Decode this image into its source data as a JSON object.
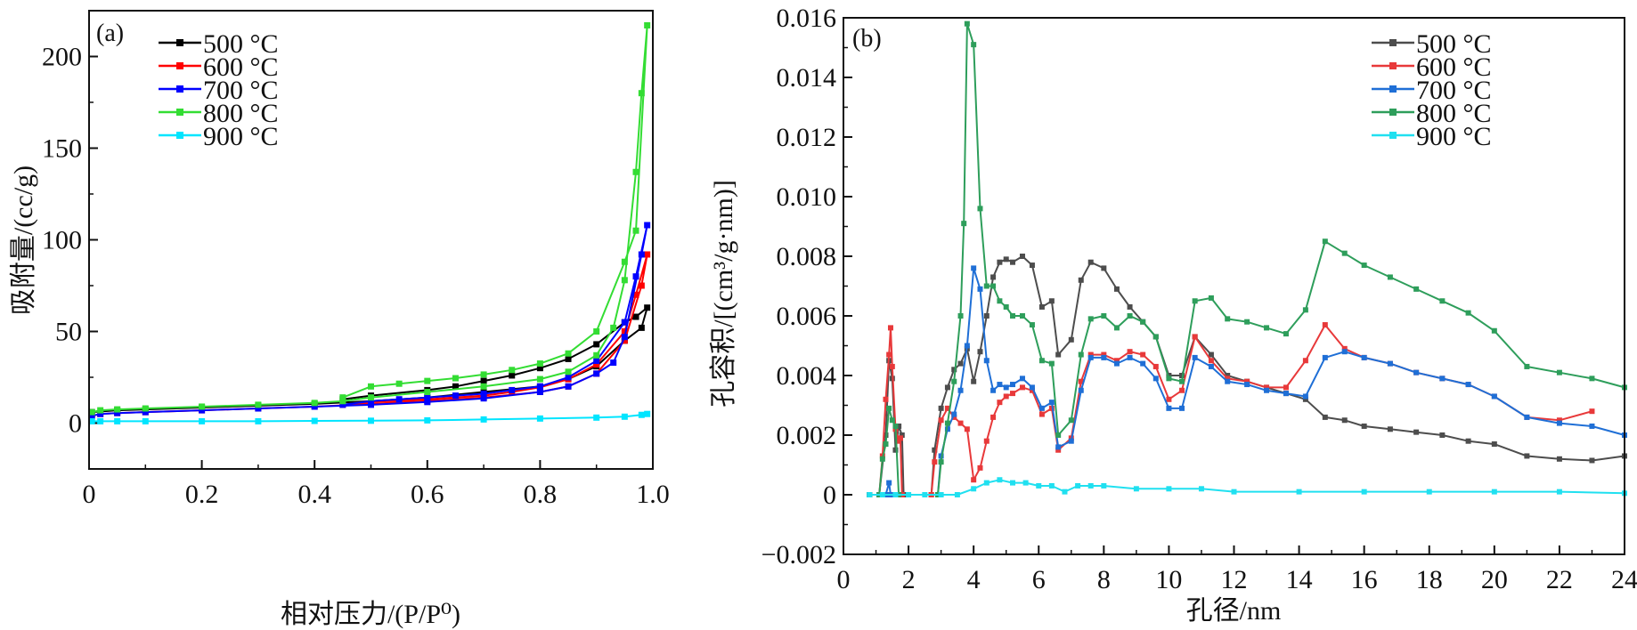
{
  "chart_data": [
    {
      "type": "line",
      "panel_label": "(a)",
      "xlabel": "相对压力/(P/P⁰)",
      "ylabel": "吸附量/(cc/g)",
      "xlim": [
        0,
        1.0
      ],
      "ylim": [
        -25,
        225
      ],
      "xticks": [
        0,
        0.2,
        0.4,
        0.6,
        0.8,
        1.0
      ],
      "xtick_labels": [
        "0",
        "0.2",
        "0.4",
        "0.6",
        "0.8",
        "1.0"
      ],
      "yticks": [
        0,
        50,
        100,
        150,
        200
      ],
      "ytick_labels": [
        "0",
        "50",
        "100",
        "150",
        "200"
      ],
      "grid": false,
      "legend_position": "top-left",
      "series": [
        {
          "name": "500 °C",
          "color": "#000000",
          "x": [
            0.005,
            0.05,
            0.1,
            0.2,
            0.3,
            0.4,
            0.5,
            0.6,
            0.7,
            0.8,
            0.85,
            0.9,
            0.95,
            0.98,
            0.99,
            0.97,
            0.95,
            0.9,
            0.85,
            0.8,
            0.75,
            0.7,
            0.65,
            0.6,
            0.5,
            0.45
          ],
          "y": [
            6,
            7,
            7.5,
            8.5,
            9.5,
            10.5,
            12,
            14,
            17,
            20,
            24,
            31,
            45,
            52,
            63,
            58,
            55,
            43,
            35,
            30,
            26,
            23,
            20,
            18,
            15,
            13
          ]
        },
        {
          "name": "600 °C",
          "color": "#ff0000",
          "x": [
            0.005,
            0.02,
            0.05,
            0.1,
            0.2,
            0.3,
            0.4,
            0.5,
            0.6,
            0.7,
            0.8,
            0.85,
            0.9,
            0.95,
            0.98,
            0.99,
            0.97,
            0.95,
            0.9,
            0.85,
            0.8,
            0.75,
            0.7,
            0.6,
            0.5,
            0.45
          ],
          "y": [
            4,
            5,
            5.5,
            6,
            7,
            8,
            9,
            10.5,
            12,
            14,
            17,
            20,
            27,
            45,
            75,
            92,
            70,
            50,
            32,
            24,
            19.5,
            17,
            15,
            13,
            11.5,
            10
          ]
        },
        {
          "name": "700 °C",
          "color": "#0000ff",
          "x": [
            0.005,
            0.02,
            0.05,
            0.1,
            0.2,
            0.3,
            0.4,
            0.5,
            0.6,
            0.7,
            0.8,
            0.85,
            0.9,
            0.93,
            0.95,
            0.98,
            0.99,
            0.97,
            0.95,
            0.9,
            0.85,
            0.8,
            0.75,
            0.7,
            0.65,
            0.6,
            0.55,
            0.5,
            0.45
          ],
          "y": [
            4,
            5,
            5.5,
            6,
            7,
            8,
            9,
            10,
            11.5,
            13.5,
            17,
            20,
            27,
            33,
            47,
            92,
            108,
            80,
            55,
            34,
            25,
            20,
            18,
            16,
            15,
            14,
            13,
            12,
            10
          ]
        },
        {
          "name": "800 °C",
          "color": "#33dd33",
          "x": [
            0.005,
            0.02,
            0.05,
            0.1,
            0.2,
            0.3,
            0.4,
            0.45,
            0.5,
            0.6,
            0.7,
            0.8,
            0.85,
            0.9,
            0.93,
            0.95,
            0.97,
            0.98,
            0.99,
            0.97,
            0.95,
            0.9,
            0.85,
            0.8,
            0.75,
            0.7,
            0.65,
            0.6,
            0.55,
            0.5,
            0.45
          ],
          "y": [
            6,
            7,
            7.5,
            8,
            9,
            10,
            11,
            12,
            14,
            17,
            20,
            24,
            28,
            37,
            52,
            78,
            137,
            180,
            217,
            105,
            88,
            50,
            38,
            32.5,
            29,
            26.5,
            24.5,
            23,
            21.5,
            20,
            14
          ]
        },
        {
          "name": "900 °C",
          "color": "#00e5ff",
          "x": [
            0.005,
            0.02,
            0.05,
            0.1,
            0.2,
            0.3,
            0.4,
            0.5,
            0.6,
            0.7,
            0.8,
            0.9,
            0.95,
            0.98,
            0.99
          ],
          "y": [
            1,
            1,
            1,
            1,
            1,
            1,
            1.2,
            1.3,
            1.5,
            2,
            2.5,
            3,
            3.5,
            4.5,
            5
          ]
        }
      ]
    },
    {
      "type": "line",
      "panel_label": "(b)",
      "xlabel": "孔径/nm",
      "ylabel": "孔容积/[(cm³/g·nm)]",
      "xlim": [
        0,
        24
      ],
      "ylim": [
        -0.002,
        0.016
      ],
      "xticks": [
        0,
        2,
        4,
        6,
        8,
        10,
        12,
        14,
        16,
        18,
        20,
        22,
        24
      ],
      "xtick_labels": [
        "0",
        "2",
        "4",
        "6",
        "8",
        "10",
        "12",
        "14",
        "16",
        "18",
        "20",
        "22",
        "24"
      ],
      "yticks": [
        -0.002,
        0,
        0.002,
        0.004,
        0.006,
        0.008,
        0.01,
        0.012,
        0.014,
        0.016
      ],
      "ytick_labels": [
        "−0.002",
        "0",
        "0.002",
        "0.004",
        "0.006",
        "0.008",
        "0.010",
        "0.012",
        "0.014",
        "0.016"
      ],
      "grid": false,
      "legend_position": "top-right",
      "series": [
        {
          "name": "500 °C",
          "color": "#4d4d4d",
          "x": [
            0.8,
            1.1,
            1.3,
            1.4,
            1.5,
            1.6,
            1.7,
            1.8,
            1.85,
            2.7,
            2.8,
            3.0,
            3.2,
            3.4,
            3.6,
            3.8,
            4.0,
            4.2,
            4.4,
            4.6,
            4.8,
            5.0,
            5.2,
            5.5,
            5.8,
            6.1,
            6.4,
            6.6,
            7.0,
            7.3,
            7.6,
            8.0,
            8.4,
            8.8,
            9.2,
            9.6,
            10.0,
            10.4,
            10.8,
            11.3,
            11.8,
            12.4,
            13.0,
            13.6,
            14.2,
            14.8,
            15.4,
            16.0,
            16.8,
            17.6,
            18.4,
            19.2,
            20.0,
            21.0,
            22.0,
            23.0,
            24.0
          ],
          "y": [
            0,
            0,
            0.002,
            0.0045,
            0.0039,
            0.0015,
            0.0023,
            0.002,
            0,
            0,
            0.0015,
            0.0029,
            0.0036,
            0.0042,
            0.0044,
            0.0049,
            0.0038,
            0.0048,
            0.006,
            0.0073,
            0.0078,
            0.0079,
            0.0078,
            0.008,
            0.0077,
            0.0063,
            0.0065,
            0.0047,
            0.0052,
            0.0072,
            0.0078,
            0.0076,
            0.0069,
            0.0063,
            0.0058,
            0.0053,
            0.004,
            0.004,
            0.0053,
            0.0047,
            0.004,
            0.0038,
            0.0036,
            0.0034,
            0.0032,
            0.0026,
            0.0025,
            0.0023,
            0.0022,
            0.0021,
            0.002,
            0.0018,
            0.0017,
            0.0013,
            0.0012,
            0.00115,
            0.0013
          ]
        },
        {
          "name": "600 °C",
          "color": "#e8393a",
          "x": [
            0.8,
            1.1,
            1.2,
            1.3,
            1.4,
            1.45,
            1.5,
            1.6,
            1.7,
            1.75,
            1.8,
            2.7,
            2.8,
            3.0,
            3.2,
            3.4,
            3.6,
            3.8,
            4.0,
            4.2,
            4.4,
            4.6,
            4.8,
            5.0,
            5.2,
            5.5,
            5.8,
            6.1,
            6.4,
            6.6,
            7.0,
            7.3,
            7.6,
            8.0,
            8.4,
            8.8,
            9.2,
            9.6,
            10.0,
            10.4,
            10.8,
            11.3,
            11.8,
            12.4,
            13.0,
            13.6,
            14.2,
            14.8,
            15.4,
            16.0,
            16.8,
            17.6,
            18.4,
            19.2,
            20.0,
            21.0,
            22.0,
            23.0
          ],
          "y": [
            0,
            0,
            0.0013,
            0.0032,
            0.0047,
            0.0056,
            0.0043,
            0.0022,
            0.0018,
            0.0019,
            0,
            0,
            0.0011,
            0.0025,
            0.0029,
            0.0026,
            0.0024,
            0.0022,
            0.0005,
            0.0009,
            0.0018,
            0.0026,
            0.0031,
            0.0033,
            0.0034,
            0.0036,
            0.0035,
            0.0027,
            0.0029,
            0.0015,
            0.0019,
            0.0038,
            0.0047,
            0.0047,
            0.0045,
            0.0048,
            0.0047,
            0.0043,
            0.0032,
            0.0035,
            0.0053,
            0.0045,
            0.0039,
            0.0038,
            0.0036,
            0.0036,
            0.0045,
            0.0057,
            0.0049,
            0.0046,
            0.0044,
            0.0041,
            0.0039,
            0.0037,
            0.0033,
            0.0026,
            0.0025,
            0.0028
          ]
        },
        {
          "name": "700 °C",
          "color": "#1f6fd6",
          "x": [
            0.8,
            1.1,
            1.3,
            1.4,
            1.45,
            2.9,
            3.0,
            3.2,
            3.4,
            3.6,
            3.8,
            4.0,
            4.2,
            4.4,
            4.6,
            4.8,
            5.0,
            5.2,
            5.5,
            5.8,
            6.1,
            6.4,
            6.6,
            7.0,
            7.3,
            7.6,
            8.0,
            8.4,
            8.8,
            9.2,
            9.6,
            10.0,
            10.4,
            10.8,
            11.3,
            11.8,
            12.4,
            13.0,
            13.6,
            14.2,
            14.8,
            15.4,
            16.0,
            16.8,
            17.6,
            18.4,
            19.2,
            20.0,
            21.0,
            22.0,
            23.0,
            24.0
          ],
          "y": [
            0,
            0,
            0,
            0.0004,
            0,
            0,
            0.0013,
            0.0022,
            0.0027,
            0.0035,
            0.005,
            0.0076,
            0.0069,
            0.0045,
            0.0035,
            0.0037,
            0.0036,
            0.0037,
            0.0039,
            0.0036,
            0.0029,
            0.0031,
            0.0016,
            0.0018,
            0.0035,
            0.0046,
            0.0046,
            0.0044,
            0.0046,
            0.0044,
            0.0039,
            0.0029,
            0.0029,
            0.0046,
            0.0043,
            0.0038,
            0.0037,
            0.0035,
            0.0034,
            0.0033,
            0.0046,
            0.0048,
            0.0046,
            0.0044,
            0.0041,
            0.0039,
            0.0037,
            0.0033,
            0.0026,
            0.0024,
            0.0023,
            0.002
          ]
        },
        {
          "name": "800 °C",
          "color": "#2e9e5b",
          "x": [
            0.8,
            1.1,
            1.2,
            1.3,
            1.4,
            1.5,
            1.6,
            1.7,
            2.9,
            3.0,
            3.2,
            3.4,
            3.6,
            3.7,
            3.8,
            4.0,
            4.2,
            4.4,
            4.6,
            4.8,
            5.0,
            5.2,
            5.5,
            5.8,
            6.1,
            6.4,
            6.6,
            7.0,
            7.3,
            7.6,
            8.0,
            8.4,
            8.8,
            9.2,
            9.6,
            10.0,
            10.4,
            10.8,
            11.3,
            11.8,
            12.4,
            13.0,
            13.6,
            14.2,
            14.8,
            15.4,
            16.0,
            16.8,
            17.6,
            18.4,
            19.2,
            20.0,
            21.0,
            22.0,
            23.0,
            24.0
          ],
          "y": [
            0,
            0,
            0.0012,
            0.0017,
            0.0029,
            0.0025,
            0.0023,
            0,
            0,
            0.0011,
            0.0024,
            0.0038,
            0.006,
            0.0091,
            0.0158,
            0.0151,
            0.0096,
            0.007,
            0.007,
            0.0065,
            0.0063,
            0.006,
            0.006,
            0.0057,
            0.0045,
            0.0044,
            0.002,
            0.0025,
            0.0047,
            0.0059,
            0.006,
            0.0056,
            0.006,
            0.0058,
            0.0053,
            0.0039,
            0.0038,
            0.0065,
            0.0066,
            0.0059,
            0.0058,
            0.0056,
            0.0054,
            0.0062,
            0.0085,
            0.0081,
            0.0077,
            0.0073,
            0.0069,
            0.0065,
            0.0061,
            0.0055,
            0.0043,
            0.0041,
            0.0039,
            0.0036
          ]
        },
        {
          "name": "900 °C",
          "color": "#20e0f0",
          "x": [
            0.8,
            1.2,
            1.6,
            2.0,
            2.5,
            3.0,
            3.5,
            4.0,
            4.4,
            4.8,
            5.2,
            5.6,
            6.0,
            6.4,
            6.8,
            7.2,
            7.6,
            8.0,
            9.0,
            10,
            11,
            12,
            14,
            16,
            18,
            20,
            22,
            24
          ],
          "y": [
            0,
            0,
            0,
            0,
            0,
            0,
            0,
            0.0002,
            0.0004,
            0.0005,
            0.0004,
            0.0004,
            0.0003,
            0.0003,
            0.0001,
            0.0003,
            0.0003,
            0.0003,
            0.0002,
            0.0002,
            0.0002,
            0.0001,
            0.0001,
            0.0001,
            0.0001,
            0.0001,
            0.0001,
            5e-05
          ]
        }
      ]
    }
  ]
}
